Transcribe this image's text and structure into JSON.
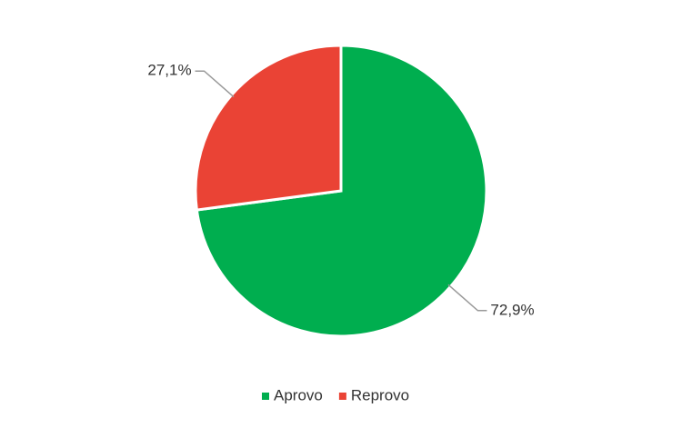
{
  "chart_data": {
    "type": "pie",
    "categories": [
      "Aprovo",
      "Reprovo"
    ],
    "values": [
      72.9,
      27.1
    ],
    "value_labels": [
      "72,9%",
      "27,1%"
    ],
    "colors": [
      "#00ae4f",
      "#ea4335"
    ],
    "legend": "bottom"
  }
}
